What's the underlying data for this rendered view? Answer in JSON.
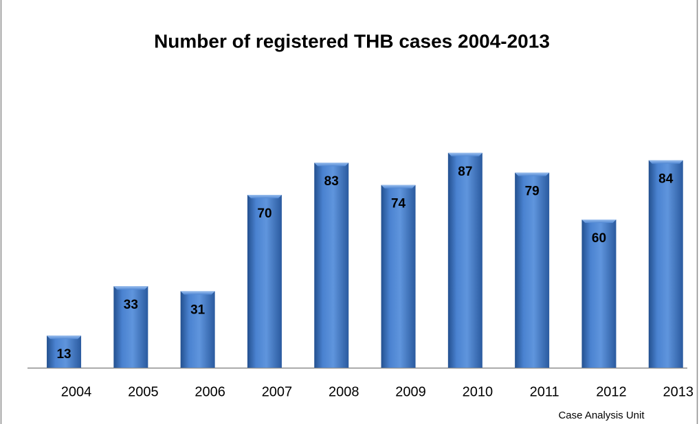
{
  "chart_data": {
    "type": "bar",
    "title": "Number of registered THB cases 2004-2013",
    "categories": [
      "2004",
      "2005",
      "2006",
      "2007",
      "2008",
      "2009",
      "2010",
      "2011",
      "2012",
      "2013"
    ],
    "values": [
      13,
      33,
      31,
      70,
      83,
      74,
      87,
      79,
      60,
      84
    ],
    "color": "#3f74c2",
    "ylim": [
      0,
      100
    ],
    "source": "Case Analysis Unit"
  }
}
